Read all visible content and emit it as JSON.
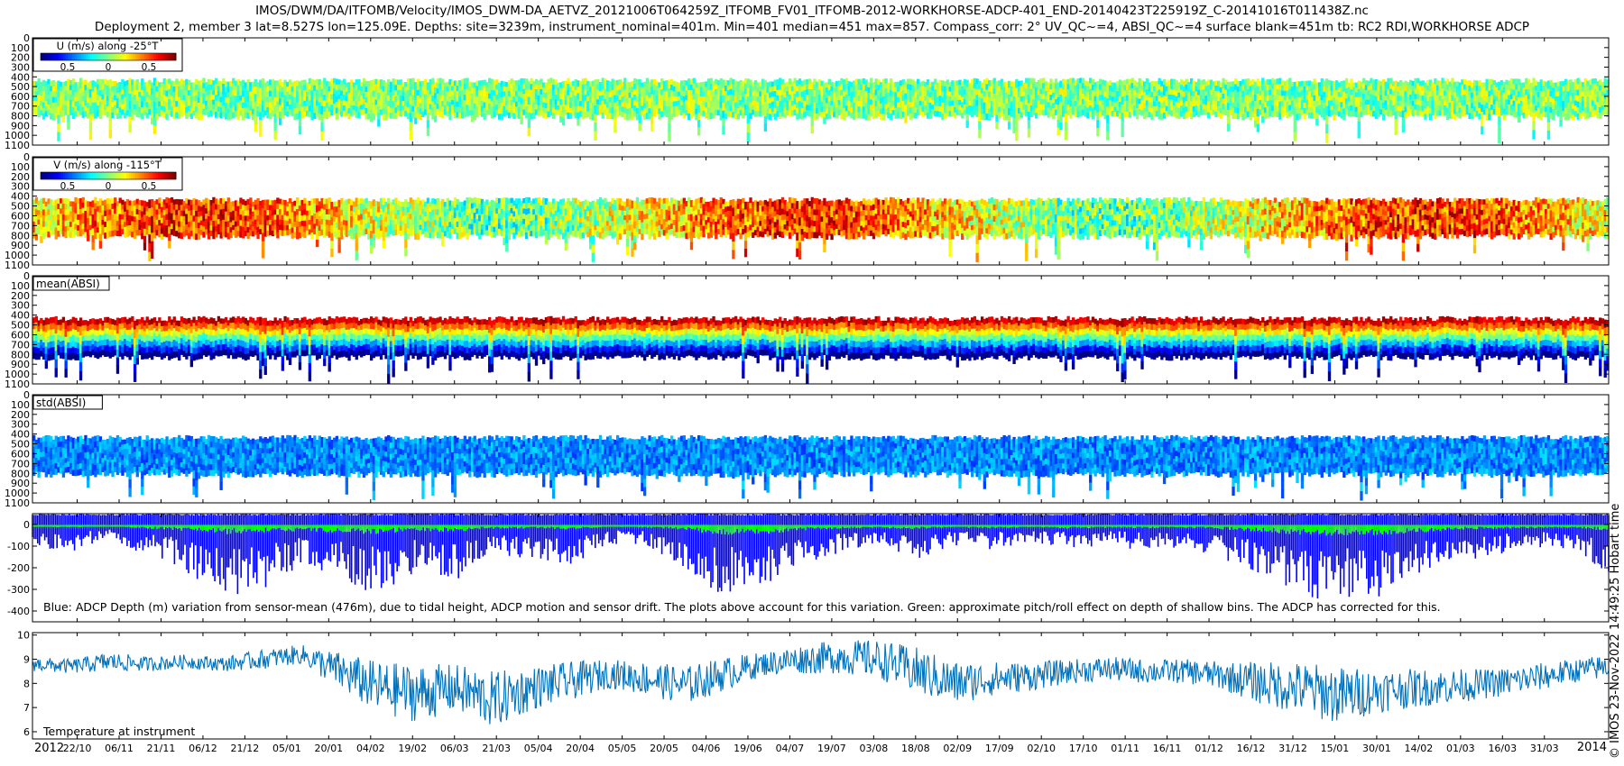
{
  "figure": {
    "title_line1": "IMOS/DWM/DA/ITFOMB/Velocity/IMOS_DWM-DA_AETVZ_20121006T064259Z_ITFOMB_FV01_ITFOMB-2012-WORKHORSE-ADCP-401_END-20140423T225919Z_C-20141016T011438Z.nc",
    "title_line2": "Deployment 2, member 3 lat=8.527S lon=125.09E. Depths: site=3239m, instrument_nominal=401m. Min=401 median=451 max=857. Compass_corr: 2° UV_QC~=4, ABSI_QC~=4 surface blank=451m tb: RC2 RDI,WORKHORSE ADCP",
    "credit": "© IMOS 23-Nov-2022 14:49:25 Hobart time",
    "background": "#ffffff"
  },
  "chart_data": [
    {
      "type": "heatmap",
      "panel": "U",
      "label": "U (m/s) along -25°T",
      "colormap": "jet",
      "colorbar_ticks": [
        "0.5",
        "0",
        "0.5"
      ],
      "colorbar_range": [
        -0.5,
        0.5
      ],
      "y_ticks": [
        0,
        100,
        200,
        300,
        400,
        500,
        600,
        700,
        800,
        900,
        1000,
        1100
      ],
      "ylim": [
        0,
        1100
      ],
      "y_reversed": true,
      "data_depth_range": [
        440,
        780
      ],
      "dominant_value": 0.0
    },
    {
      "type": "heatmap",
      "panel": "V",
      "label": "V (m/s) along -115°T",
      "colormap": "jet",
      "colorbar_ticks": [
        "0.5",
        "0",
        "0.5"
      ],
      "colorbar_range": [
        -0.5,
        0.5
      ],
      "y_ticks": [
        0,
        100,
        200,
        300,
        400,
        500,
        600,
        700,
        800,
        900,
        1000,
        1100
      ],
      "ylim": [
        0,
        1100
      ],
      "y_reversed": true,
      "data_depth_range": [
        440,
        780
      ],
      "dominant_value": 0.2
    },
    {
      "type": "heatmap",
      "panel": "mean_absi",
      "label": "mean(ABSI)",
      "colormap": "jet",
      "y_ticks": [
        0,
        100,
        200,
        300,
        400,
        500,
        600,
        700,
        800,
        900,
        1000,
        1100
      ],
      "ylim": [
        0,
        1100
      ],
      "y_reversed": true,
      "data_depth_range": [
        440,
        800
      ],
      "gradient": "high at top (red) to low at bottom (dark blue)"
    },
    {
      "type": "heatmap",
      "panel": "std_absi",
      "label": "std(ABSI)",
      "colormap": "jet",
      "y_ticks": [
        0,
        100,
        200,
        300,
        400,
        500,
        600,
        700,
        800,
        900,
        1000,
        1100
      ],
      "ylim": [
        0,
        1100
      ],
      "y_reversed": true,
      "data_depth_range": [
        440,
        780
      ],
      "dominant_value": "low (blue)"
    },
    {
      "type": "area",
      "panel": "depth_variation",
      "annotation": "Blue: ADCP Depth (m) variation from sensor-mean (476m), due to tidal height, ADCP motion and sensor drift. The plots above account for this variation. Green: approximate pitch/roll effect on depth of shallow bins. The ADCP has corrected for this.",
      "y_ticks": [
        0,
        -100,
        -200,
        -300,
        -400
      ],
      "ylim": [
        -450,
        50
      ],
      "series": [
        {
          "color": "#0000ff",
          "values": [
            -100,
            -130,
            -60,
            -150,
            -220,
            -340,
            -320,
            -180,
            -250,
            -330,
            -220,
            -260,
            -140,
            -160,
            -190,
            -90,
            -100,
            -210,
            -340,
            -280,
            -200,
            -130,
            -90,
            -160,
            -100,
            -120,
            -80,
            -120,
            -90,
            -130,
            -100,
            -170,
            -230,
            -330,
            -370,
            -340,
            -260,
            -180,
            -140,
            -120,
            -110,
            -230
          ]
        },
        {
          "color": "#00ff00",
          "values": [
            -10,
            -15,
            -8,
            -20,
            -30,
            -45,
            -40,
            -30,
            -40,
            -45,
            -30,
            -35,
            -20,
            -20,
            -25,
            -10,
            -15,
            -30,
            -50,
            -45,
            -30,
            -20,
            -15,
            -25,
            -15,
            -20,
            -12,
            -20,
            -15,
            -20,
            -15,
            -25,
            -35,
            -50,
            -55,
            -50,
            -40,
            -25,
            -20,
            -18,
            -15,
            -30
          ]
        }
      ]
    },
    {
      "type": "line",
      "panel": "temperature",
      "annotation": "Temperature at instrument",
      "color": "#0072bd",
      "y_ticks": [
        6,
        7,
        8,
        9,
        10
      ],
      "ylim": [
        5.7,
        10.1
      ],
      "mean_values": [
        8.8,
        8.7,
        8.9,
        8.8,
        8.9,
        8.8,
        9.0,
        9.2,
        8.5,
        7.8,
        7.6,
        7.8,
        7.3,
        7.8,
        8.1,
        8.4,
        8.2,
        7.9,
        8.4,
        8.8,
        9.0,
        9.1,
        9.0,
        8.5,
        8.0,
        8.2,
        8.3,
        8.5,
        8.6,
        8.5,
        8.5,
        8.3,
        8.0,
        7.8,
        7.5,
        7.7,
        7.8,
        7.9,
        8.0,
        8.2,
        8.5,
        8.7
      ],
      "spread": [
        0.3,
        0.3,
        0.4,
        0.3,
        0.3,
        0.3,
        0.4,
        0.4,
        0.8,
        1.1,
        1.2,
        1.0,
        1.2,
        0.9,
        0.8,
        0.6,
        0.7,
        0.8,
        0.7,
        0.5,
        0.6,
        0.7,
        0.8,
        1.0,
        0.9,
        0.7,
        0.6,
        0.5,
        0.5,
        0.5,
        0.5,
        0.6,
        0.9,
        1.1,
        1.2,
        0.9,
        0.8,
        0.7,
        0.6,
        0.6,
        0.5,
        0.5
      ]
    }
  ],
  "time_axis": {
    "year_start_label": "2012",
    "year_end_label": "2014",
    "ticks": [
      "22/10",
      "06/11",
      "21/11",
      "06/12",
      "21/12",
      "05/01",
      "20/01",
      "04/02",
      "19/02",
      "06/03",
      "21/03",
      "05/04",
      "20/04",
      "05/05",
      "20/05",
      "04/06",
      "19/06",
      "04/07",
      "19/07",
      "03/08",
      "18/08",
      "02/09",
      "17/09",
      "02/10",
      "17/10",
      "01/11",
      "16/11",
      "01/12",
      "16/12",
      "31/12",
      "15/01",
      "30/01",
      "14/02",
      "01/03",
      "16/03",
      "31/03"
    ],
    "range": [
      "2012-10-06",
      "2014-04-23"
    ]
  }
}
